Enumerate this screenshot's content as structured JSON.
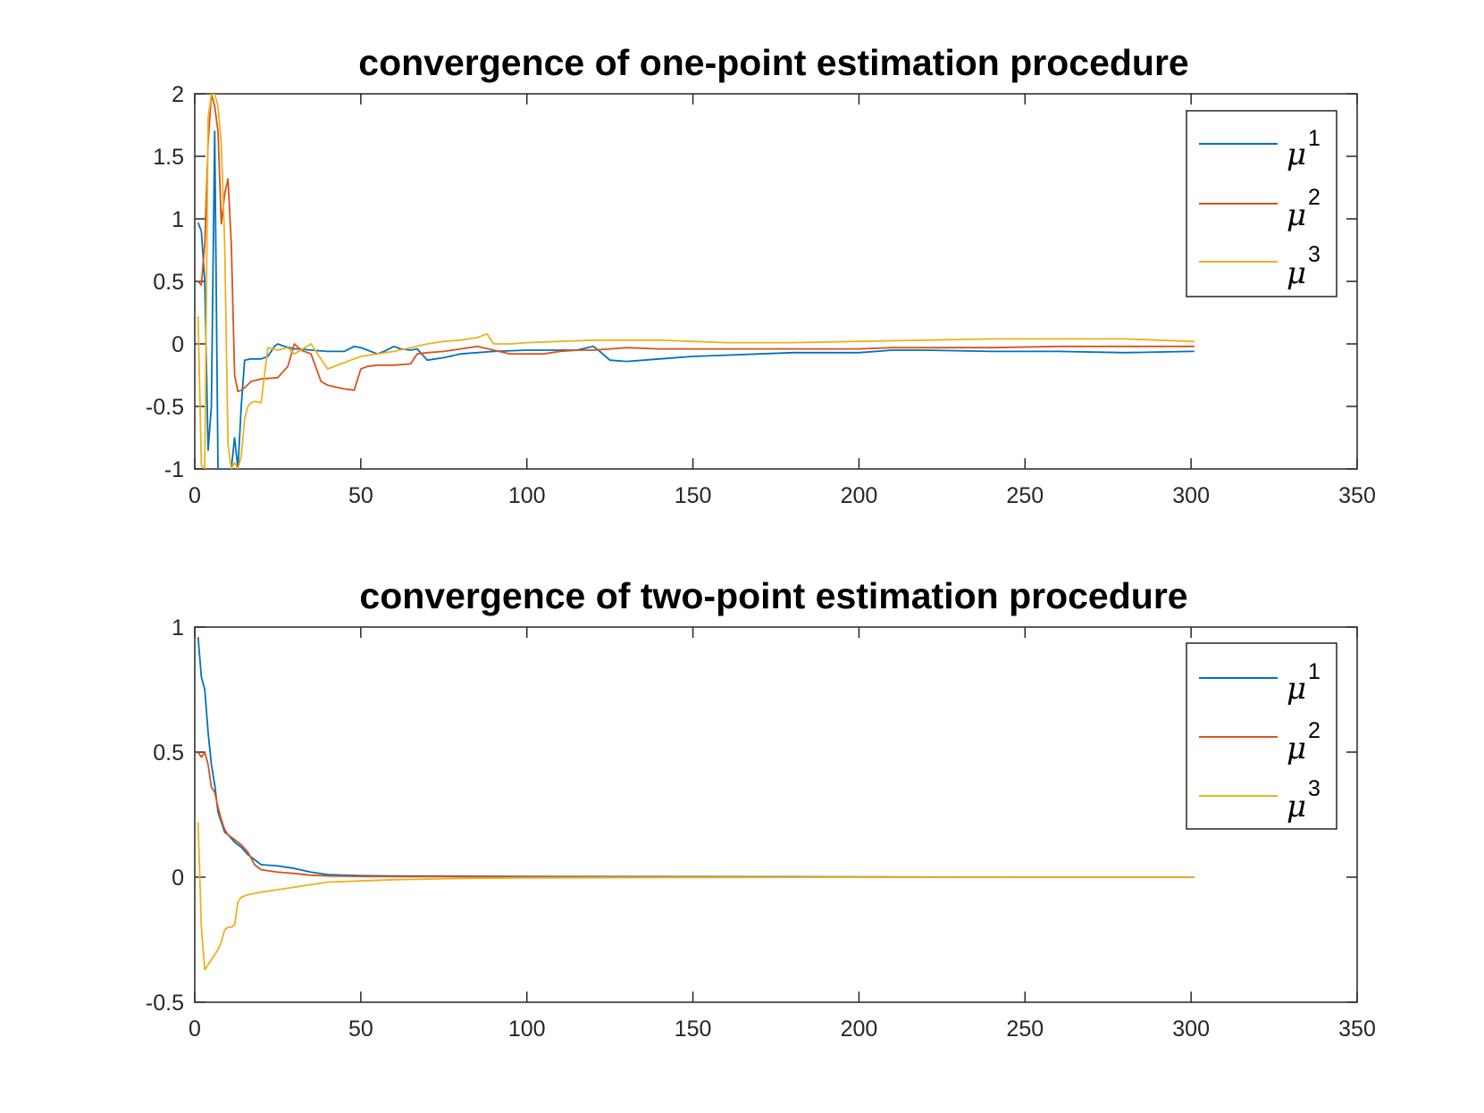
{
  "chart_data": [
    {
      "type": "line",
      "title": "convergence of one-point estimation procedure",
      "xlabel": "",
      "ylabel": "",
      "xlim": [
        0,
        350
      ],
      "ylim": [
        -1,
        2
      ],
      "xticks": [
        0,
        50,
        100,
        150,
        200,
        250,
        300,
        350
      ],
      "yticks": [
        -1,
        -0.5,
        0,
        0.5,
        1,
        1.5,
        2
      ],
      "legend_position": "top-right",
      "grid": false,
      "series": [
        {
          "name": "μ",
          "sup": "1",
          "color": "#0072BD",
          "x": [
            1,
            2,
            3,
            4,
            5,
            6,
            7,
            8,
            9,
            10,
            11,
            12,
            13,
            14,
            15,
            17,
            20,
            22,
            24,
            25,
            27,
            30,
            32,
            35,
            40,
            45,
            48,
            50,
            52,
            55,
            57,
            60,
            62,
            65,
            67,
            70,
            75,
            80,
            90,
            100,
            110,
            115,
            120,
            122,
            125,
            130,
            140,
            150,
            160,
            170,
            180,
            200,
            210,
            220,
            240,
            260,
            280,
            300,
            301
          ],
          "y": [
            0.97,
            0.9,
            0.5,
            -0.85,
            -0.5,
            1.7,
            -1.0,
            -1.0,
            -1.0,
            -1.0,
            -1.0,
            -0.75,
            -1.0,
            -0.5,
            -0.13,
            -0.12,
            -0.12,
            -0.1,
            -0.02,
            0.0,
            -0.02,
            -0.04,
            -0.04,
            -0.05,
            -0.06,
            -0.06,
            -0.02,
            -0.03,
            -0.05,
            -0.08,
            -0.06,
            -0.02,
            -0.04,
            -0.05,
            -0.04,
            -0.13,
            -0.11,
            -0.08,
            -0.06,
            -0.05,
            -0.05,
            -0.05,
            -0.02,
            -0.06,
            -0.13,
            -0.14,
            -0.12,
            -0.1,
            -0.09,
            -0.08,
            -0.07,
            -0.07,
            -0.05,
            -0.05,
            -0.06,
            -0.06,
            -0.07,
            -0.06,
            -0.06
          ]
        },
        {
          "name": "μ",
          "sup": "2",
          "color": "#D95319",
          "x": [
            1,
            2,
            3,
            4,
            5,
            6,
            7,
            8,
            9,
            10,
            11,
            12,
            13,
            14,
            15,
            17,
            20,
            25,
            28,
            30,
            32,
            35,
            38,
            40,
            45,
            48,
            50,
            52,
            55,
            60,
            65,
            67,
            70,
            75,
            80,
            85,
            90,
            95,
            100,
            105,
            110,
            115,
            120,
            125,
            130,
            140,
            150,
            160,
            170,
            180,
            200,
            210,
            220,
            240,
            260,
            280,
            300,
            301
          ],
          "y": [
            0.5,
            0.47,
            0.8,
            1.6,
            2.0,
            1.9,
            1.7,
            0.96,
            1.2,
            1.32,
            0.8,
            -0.25,
            -0.38,
            -0.37,
            -0.35,
            -0.3,
            -0.28,
            -0.27,
            -0.18,
            0.0,
            -0.05,
            -0.08,
            -0.3,
            -0.33,
            -0.36,
            -0.37,
            -0.2,
            -0.18,
            -0.17,
            -0.17,
            -0.16,
            -0.08,
            -0.07,
            -0.06,
            -0.04,
            -0.02,
            -0.05,
            -0.08,
            -0.08,
            -0.08,
            -0.06,
            -0.05,
            -0.05,
            -0.04,
            -0.03,
            -0.04,
            -0.04,
            -0.04,
            -0.04,
            -0.04,
            -0.04,
            -0.03,
            -0.03,
            -0.03,
            -0.02,
            -0.02,
            -0.02,
            -0.02
          ]
        },
        {
          "name": "μ",
          "sup": "3",
          "color": "#EDB120",
          "x": [
            1,
            2,
            3,
            4,
            5,
            6,
            7,
            8,
            9,
            10,
            11,
            12,
            13,
            14,
            15,
            16,
            17,
            18,
            20,
            22,
            25,
            28,
            30,
            35,
            40,
            45,
            50,
            55,
            60,
            65,
            70,
            75,
            80,
            85,
            88,
            90,
            95,
            100,
            110,
            120,
            130,
            140,
            150,
            160,
            180,
            200,
            220,
            240,
            260,
            280,
            300,
            301
          ],
          "y": [
            0.22,
            -0.97,
            -1.0,
            1.8,
            2.0,
            2.0,
            1.9,
            1.6,
            0.8,
            -0.8,
            -1.0,
            -0.95,
            -1.0,
            -0.9,
            -0.6,
            -0.5,
            -0.47,
            -0.46,
            -0.47,
            -0.03,
            -0.05,
            -0.03,
            -0.08,
            0.0,
            -0.2,
            -0.15,
            -0.1,
            -0.08,
            -0.06,
            -0.03,
            0.0,
            0.02,
            0.03,
            0.05,
            0.08,
            0.0,
            0.0,
            0.01,
            0.02,
            0.03,
            0.03,
            0.03,
            0.02,
            0.01,
            0.01,
            0.02,
            0.03,
            0.04,
            0.04,
            0.04,
            0.02,
            0.02
          ]
        }
      ]
    },
    {
      "type": "line",
      "title": "convergence of two-point estimation procedure",
      "xlabel": "",
      "ylabel": "",
      "xlim": [
        0,
        350
      ],
      "ylim": [
        -0.5,
        1
      ],
      "xticks": [
        0,
        50,
        100,
        150,
        200,
        250,
        300,
        350
      ],
      "yticks": [
        -0.5,
        0,
        0.5,
        1
      ],
      "legend_position": "top-right",
      "grid": false,
      "series": [
        {
          "name": "μ",
          "sup": "1",
          "color": "#0072BD",
          "x": [
            1,
            2,
            3,
            4,
            5,
            6,
            7,
            8,
            9,
            10,
            12,
            14,
            16,
            18,
            20,
            25,
            30,
            35,
            40,
            45,
            50,
            60,
            80,
            100,
            150,
            200,
            250,
            300,
            301
          ],
          "y": [
            0.96,
            0.8,
            0.75,
            0.58,
            0.45,
            0.37,
            0.26,
            0.22,
            0.18,
            0.17,
            0.14,
            0.12,
            0.09,
            0.07,
            0.05,
            0.045,
            0.035,
            0.02,
            0.01,
            0.008,
            0.006,
            0.005,
            0.004,
            0.003,
            0.002,
            0.001,
            0.0,
            0.0,
            0.0
          ]
        },
        {
          "name": "μ",
          "sup": "2",
          "color": "#D95319",
          "x": [
            1,
            2,
            3,
            4,
            5,
            6,
            7,
            8,
            9,
            10,
            12,
            14,
            16,
            18,
            20,
            25,
            30,
            35,
            40,
            45,
            50,
            60,
            80,
            100,
            150,
            200,
            250,
            300,
            301
          ],
          "y": [
            0.5,
            0.48,
            0.5,
            0.45,
            0.36,
            0.34,
            0.28,
            0.23,
            0.19,
            0.17,
            0.15,
            0.13,
            0.1,
            0.05,
            0.03,
            0.02,
            0.015,
            0.008,
            0.005,
            0.004,
            0.003,
            0.002,
            0.002,
            0.001,
            0.0,
            0.0,
            0.0,
            0.0,
            0.0
          ]
        },
        {
          "name": "μ",
          "sup": "3",
          "color": "#EDB120",
          "x": [
            1,
            2,
            3,
            4,
            5,
            6,
            7,
            8,
            9,
            10,
            11,
            12,
            13,
            14,
            16,
            18,
            20,
            25,
            30,
            35,
            40,
            50,
            60,
            80,
            100,
            150,
            200,
            250,
            300,
            301
          ],
          "y": [
            0.22,
            -0.2,
            -0.37,
            -0.35,
            -0.33,
            -0.31,
            -0.29,
            -0.26,
            -0.21,
            -0.2,
            -0.2,
            -0.19,
            -0.1,
            -0.08,
            -0.07,
            -0.065,
            -0.06,
            -0.05,
            -0.04,
            -0.03,
            -0.02,
            -0.015,
            -0.01,
            -0.005,
            -0.003,
            -0.001,
            0.0,
            0.0,
            0.0,
            0.0
          ]
        }
      ]
    }
  ]
}
